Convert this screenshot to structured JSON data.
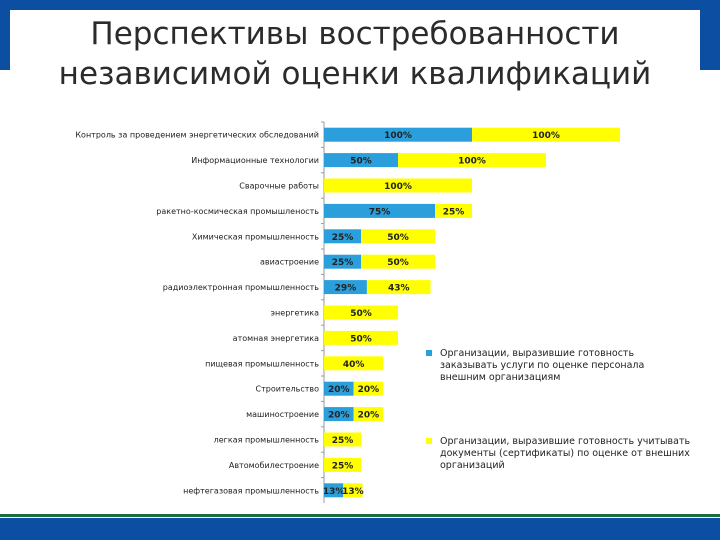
{
  "title": {
    "line1": "Перспективы востребованности",
    "line2": "независимой оценки квалификаций"
  },
  "colors": {
    "series1": "#2a9fdb",
    "series2": "#ffff00",
    "frame": "#0b4ea2"
  },
  "chart_data": {
    "type": "bar",
    "orientation": "horizontal",
    "stacked": true,
    "show_data_labels": true,
    "categories": [
      "Контроль за проведением энергетических обследований",
      "Информационные технологии",
      "Сварочные работы",
      "ракетно-космическая промышленость",
      "Химическая промышленность",
      "авиастроение",
      "радиоэлектронная промышленность",
      "энергетика",
      "атомная энергетика",
      "пищевая промышленность",
      "Строительство",
      "машиностроение",
      "легкая промышленность",
      "Автомобилестроение",
      "нефтегазовая промышленность"
    ],
    "series": [
      {
        "name": "Организации, выразившие готовность заказывать услуги по оценке персонала внешним организациям",
        "color": "#2a9fdb",
        "values": [
          100,
          50,
          null,
          75,
          25,
          25,
          29,
          null,
          null,
          null,
          20,
          20,
          null,
          null,
          13
        ]
      },
      {
        "name": "Организации, выразившие готовность учитывать документы (сертификаты) по оценке от внешних организаций",
        "color": "#ffff00",
        "values": [
          100,
          100,
          100,
          25,
          50,
          50,
          43,
          50,
          50,
          40,
          20,
          20,
          25,
          25,
          13
        ]
      }
    ],
    "value_suffix": "%",
    "legend_position": "right",
    "grid": false
  }
}
